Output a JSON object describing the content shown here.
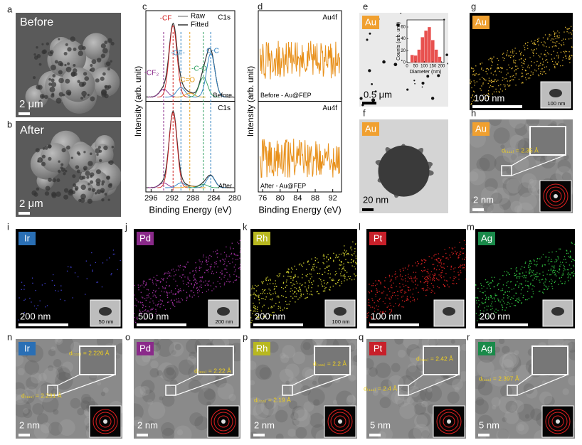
{
  "panels": [
    {
      "letter": "a",
      "label": "Before",
      "scale_bar": "2 μm"
    },
    {
      "letter": "b",
      "label": "After",
      "scale_bar": "2 μm"
    },
    {
      "letter": "c",
      "peaks": [
        "-CF₂",
        "-CF",
        "-CF-",
        "-C=O",
        "-C-O",
        "C-C"
      ],
      "legend": [
        "Raw",
        "Fitted"
      ],
      "spectrum": "C1s",
      "states": [
        "Before",
        "After"
      ],
      "y_label": "Intensity (arb. unit)",
      "x_label": "Binding Energy (eV)",
      "xlim": [
        297,
        280
      ],
      "xticks": [
        296,
        292,
        288,
        284,
        280
      ]
    },
    {
      "letter": "d",
      "spectrum": "Au4f",
      "states": [
        "Before - Au@FEP",
        "After - Au@FEP"
      ],
      "y_label": "Intensity (arb. unit)",
      "x_label": "Binding Energy (eV)",
      "xlim": [
        75,
        94
      ],
      "xticks": [
        76,
        80,
        84,
        88,
        92
      ],
      "color": "#e8901a"
    },
    {
      "letter": "e",
      "label": "Au",
      "label_color": "#f0a030",
      "scale_bar": "0.5 μm",
      "inset": {
        "type": "histogram",
        "x_label": "Diameter (nm)",
        "y_label": "Counts (arb. unit)",
        "bins": [
          20,
          40,
          60,
          80,
          100,
          120,
          140,
          160,
          180,
          200
        ],
        "counts": [
          13,
          12,
          22,
          43,
          54,
          60,
          38,
          22,
          10
        ],
        "xlim": [
          0,
          215
        ],
        "ylim": [
          0,
          72
        ],
        "xticks": [
          0,
          50,
          100,
          150,
          200
        ],
        "yticks": [
          0,
          20,
          40,
          60
        ],
        "color": "#e8514f"
      }
    },
    {
      "letter": "f",
      "label": "Au",
      "label_color": "#f0a030",
      "scale_bar": "20 nm"
    },
    {
      "letter": "g",
      "label": "Au",
      "label_color": "#f0a030",
      "dot_color": "#d8b030",
      "scale_bar": "100 nm",
      "inset_scale_bar": "100 nm"
    },
    {
      "letter": "h",
      "label": "Au",
      "label_color": "#f0a030",
      "d_spacings": [
        "d₍₁₁₁₎ = 2.35 Å"
      ],
      "scale_bar": "2 nm"
    },
    {
      "letter": "i",
      "label": "Ir",
      "label_color": "#2a6fb5",
      "dot_color": "#4040d0",
      "scale_bar": "200 nm",
      "inset_scale_bar": "50 nm"
    },
    {
      "letter": "j",
      "label": "Pd",
      "label_color": "#8a2a8a",
      "dot_color": "#a030a0",
      "scale_bar": "500 nm",
      "inset_scale_bar": "200 nm"
    },
    {
      "letter": "k",
      "label": "Rh",
      "label_color": "#b8b820",
      "dot_color": "#d8d830",
      "scale_bar": "200 nm",
      "inset_scale_bar": "100 nm"
    },
    {
      "letter": "l",
      "label": "Pt",
      "label_color": "#c8202a",
      "dot_color": "#d02020",
      "scale_bar": "100 nm"
    },
    {
      "letter": "m",
      "label": "Ag",
      "label_color": "#1a8a4a",
      "dot_color": "#30c040",
      "scale_bar": "200 nm"
    },
    {
      "letter": "n",
      "label": "Ir",
      "label_color": "#2a6fb5",
      "d_spacings": [
        "d₍₁₁₁₎ = 2.226 Å",
        "d₍₁₁₁₎ = 2.231 Å"
      ],
      "scale_bar": "2 nm"
    },
    {
      "letter": "o",
      "label": "Pd",
      "label_color": "#8a2a8a",
      "d_spacings": [
        "d₍₁₁₁₎ = 2.22 Å"
      ],
      "scale_bar": "2 nm"
    },
    {
      "letter": "p",
      "label": "Rh",
      "label_color": "#b8b820",
      "d_spacings": [
        "d₍₁₁₁₎ = 2.2 Å",
        "d₍₁₁₁₎ = 2.19 Å"
      ],
      "scale_bar": "2 nm"
    },
    {
      "letter": "q",
      "label": "Pt",
      "label_color": "#c8202a",
      "d_spacings": [
        "d₍₁₁₁₎ = 2.42 Å",
        "d₍₁₁₁₎ = 2.4 Å"
      ],
      "scale_bar": "5 nm"
    },
    {
      "letter": "r",
      "label": "Ag",
      "label_color": "#1a8a4a",
      "d_spacings": [
        "d₍₁₁₁₎ = 2.397 Å"
      ],
      "scale_bar": "5 nm"
    }
  ]
}
